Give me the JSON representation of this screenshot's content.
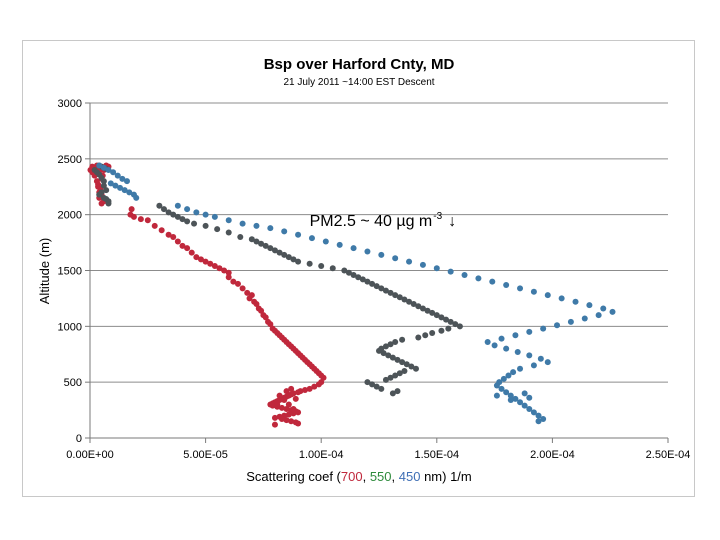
{
  "chart_data": {
    "type": "scatter",
    "title": "Bsp over Harford Cnty, MD",
    "subtitle": "21 July 2011  ~14:00 EST Descent",
    "xlabel_prefix": "Scattering coef (",
    "xlabel_parts": [
      {
        "text": "700",
        "color": "#c0283c"
      },
      {
        "text": ", ",
        "color": "#000000"
      },
      {
        "text": "550",
        "color": "#2e8b3c"
      },
      {
        "text": ", ",
        "color": "#000000"
      },
      {
        "text": "450",
        "color": "#3f6fb5"
      }
    ],
    "xlabel_suffix": " nm) 1/m",
    "ylabel": "Altitude (m)",
    "xlim": [
      0,
      0.00025
    ],
    "ylim": [
      0,
      3000
    ],
    "xticks": [
      0,
      5e-05,
      0.0001,
      0.00015,
      0.0002,
      0.00025
    ],
    "xtick_labels": [
      "0.00E+00",
      "5.00E-05",
      "1.00E-04",
      "1.50E-04",
      "2.00E-04",
      "2.50E-04"
    ],
    "yticks": [
      0,
      500,
      1000,
      1500,
      2000,
      2500,
      3000
    ],
    "ytick_labels": [
      "0",
      "500",
      "1000",
      "1500",
      "2000",
      "2500",
      "3000"
    ],
    "grid": "horizontal",
    "annotation": {
      "text": "PM2.5 ~ 40 µg m",
      "superscript": "-3",
      "arrow": "↓",
      "x": 9.5e-05,
      "y": 1900
    },
    "series": [
      {
        "name": "700 nm",
        "color": "#c0283c",
        "x": [
          2e-07,
          1e-06,
          2e-06,
          3e-06,
          3.5e-06,
          4e-06,
          2e-06,
          3e-06,
          1e-06,
          2.5e-06,
          4e-06,
          5e-06,
          3.5e-06,
          5e-06,
          4e-06,
          6e-06,
          5e-06,
          4.5e-06,
          5.5e-06,
          6e-06,
          7e-06,
          6.5e-06,
          8e-06,
          1.8e-05,
          1.75e-05,
          1.9e-05,
          2.2e-05,
          2.5e-05,
          2.8e-05,
          3.1e-05,
          3.4e-05,
          3.6e-05,
          3.8e-05,
          4e-05,
          4.2e-05,
          4.4e-05,
          4.6e-05,
          4.8e-05,
          5e-05,
          5.2e-05,
          5.4e-05,
          5.6e-05,
          5.8e-05,
          6e-05,
          6e-05,
          6.2e-05,
          6.4e-05,
          6.6e-05,
          6.8e-05,
          7e-05,
          6.9e-05,
          7.1e-05,
          7.2e-05,
          7.3e-05,
          7.4e-05,
          7.5e-05,
          7.6e-05,
          7.7e-05,
          7.8e-05,
          7.9e-05,
          8e-05,
          8.1e-05,
          8.2e-05,
          8.3e-05,
          8.4e-05,
          8.5e-05,
          8.6e-05,
          8.7e-05,
          8.8e-05,
          8.9e-05,
          9e-05,
          9.1e-05,
          9.2e-05,
          9.3e-05,
          9.4e-05,
          9.5e-05,
          9.6e-05,
          9.7e-05,
          9.8e-05,
          9.9e-05,
          0.0001,
          0.000101,
          0.0001,
          9.9e-05,
          9.7e-05,
          9.5e-05,
          9.3e-05,
          9.1e-05,
          9e-05,
          8.8e-05,
          8.7e-05,
          8.6e-05,
          8.5e-05,
          8.4e-05,
          8.3e-05,
          8.2e-05,
          8.1e-05,
          8e-05,
          7.9e-05,
          7.8e-05,
          7.9e-05,
          8.1e-05,
          8.3e-05,
          8.5e-05,
          8.7e-05,
          8.9e-05,
          9e-05,
          8.8e-05,
          8.6e-05,
          8.4e-05,
          8.2e-05,
          8e-05,
          8.3e-05,
          8.5e-05,
          8.7e-05,
          8.9e-05,
          9e-05,
          8e-05,
          8.2e-05,
          8.4e-05,
          8.6e-05,
          8.8e-05,
          8.5e-05,
          8.7e-05,
          8.1e-05,
          8.9e-05
        ],
        "y": [
          2400,
          2380,
          2350,
          2300,
          2250,
          2200,
          2420,
          2440,
          2430,
          2410,
          2390,
          2320,
          2270,
          2180,
          2150,
          2120,
          2100,
          2230,
          2350,
          2400,
          2440,
          2420,
          2430,
          2050,
          2000,
          1980,
          1960,
          1950,
          1900,
          1860,
          1820,
          1800,
          1760,
          1720,
          1700,
          1660,
          1620,
          1600,
          1580,
          1560,
          1540,
          1520,
          1500,
          1480,
          1440,
          1400,
          1380,
          1340,
          1300,
          1280,
          1250,
          1220,
          1200,
          1160,
          1140,
          1100,
          1080,
          1040,
          1020,
          980,
          960,
          940,
          920,
          900,
          880,
          860,
          840,
          820,
          800,
          780,
          760,
          740,
          720,
          700,
          680,
          660,
          640,
          620,
          600,
          580,
          560,
          540,
          500,
          480,
          460,
          440,
          430,
          420,
          410,
          400,
          390,
          380,
          370,
          360,
          350,
          340,
          330,
          320,
          310,
          300,
          290,
          280,
          270,
          260,
          250,
          240,
          230,
          220,
          210,
          200,
          190,
          180,
          170,
          160,
          150,
          140,
          130,
          120,
          380,
          340,
          300,
          260,
          420,
          440,
          300,
          350
        ],
        "_": null
      },
      {
        "name": "550 nm",
        "color": "#4d5458",
        "x": [
          2e-06,
          3e-06,
          4e-06,
          5e-06,
          6e-06,
          4e-06,
          5e-06,
          6e-06,
          7e-06,
          6e-06,
          7e-06,
          5e-06,
          4e-06,
          6e-06,
          7e-06,
          8e-06,
          8e-06,
          3e-05,
          3.2e-05,
          3.4e-05,
          3.6e-05,
          3.8e-05,
          4e-05,
          4.2e-05,
          4.5e-05,
          5e-05,
          5.5e-05,
          6e-05,
          6.5e-05,
          7e-05,
          7.2e-05,
          7.4e-05,
          7.6e-05,
          7.8e-05,
          8e-05,
          8.2e-05,
          8.4e-05,
          8.6e-05,
          8.8e-05,
          9e-05,
          9.5e-05,
          0.0001,
          0.000105,
          0.00011,
          0.000112,
          0.000114,
          0.000116,
          0.000118,
          0.00012,
          0.000122,
          0.000124,
          0.000126,
          0.000128,
          0.00013,
          0.000132,
          0.000134,
          0.000136,
          0.000138,
          0.00014,
          0.000142,
          0.000144,
          0.000146,
          0.000148,
          0.00015,
          0.000152,
          0.000154,
          0.000156,
          0.000158,
          0.00016,
          0.000155,
          0.000152,
          0.000148,
          0.000145,
          0.000142,
          0.000135,
          0.000132,
          0.00013,
          0.000128,
          0.000126,
          0.000125,
          0.000127,
          0.000129,
          0.000131,
          0.000133,
          0.000135,
          0.000137,
          0.000139,
          0.000141,
          0.000136,
          0.000134,
          0.000132,
          0.00013,
          0.000128,
          0.00012,
          0.000122,
          0.000124,
          0.000126,
          0.000133,
          0.000131
        ],
        "y": [
          2400,
          2380,
          2360,
          2330,
          2300,
          2440,
          2430,
          2420,
          2410,
          2260,
          2220,
          2200,
          2180,
          2150,
          2140,
          2120,
          2100,
          2080,
          2050,
          2020,
          2000,
          1980,
          1960,
          1940,
          1920,
          1900,
          1870,
          1840,
          1800,
          1780,
          1760,
          1740,
          1720,
          1700,
          1680,
          1660,
          1640,
          1620,
          1600,
          1580,
          1560,
          1540,
          1520,
          1500,
          1480,
          1460,
          1440,
          1420,
          1400,
          1380,
          1360,
          1340,
          1320,
          1300,
          1280,
          1260,
          1240,
          1220,
          1200,
          1180,
          1160,
          1140,
          1120,
          1100,
          1080,
          1060,
          1040,
          1020,
          1000,
          980,
          960,
          940,
          920,
          900,
          880,
          860,
          840,
          820,
          800,
          780,
          760,
          740,
          720,
          700,
          680,
          660,
          640,
          620,
          600,
          580,
          560,
          540,
          520,
          500,
          480,
          460,
          440,
          420,
          400
        ],
        "_": null
      },
      {
        "name": "450 nm",
        "color": "#3f7aa8",
        "x": [
          4e-06,
          6e-06,
          8e-06,
          1e-05,
          1.2e-05,
          1.4e-05,
          1.6e-05,
          9e-06,
          1.1e-05,
          1.3e-05,
          1.5e-05,
          1.7e-05,
          1.9e-05,
          2e-05,
          3.8e-05,
          4.2e-05,
          4.6e-05,
          5e-05,
          5.4e-05,
          6e-05,
          6.6e-05,
          7.2e-05,
          7.8e-05,
          8.4e-05,
          9e-05,
          9.6e-05,
          0.000102,
          0.000108,
          0.000114,
          0.00012,
          0.000126,
          0.000132,
          0.000138,
          0.000144,
          0.00015,
          0.000156,
          0.000162,
          0.000168,
          0.000174,
          0.00018,
          0.000186,
          0.000192,
          0.000198,
          0.000204,
          0.00021,
          0.000216,
          0.000222,
          0.000226,
          0.00022,
          0.000214,
          0.000208,
          0.000202,
          0.000196,
          0.00019,
          0.000184,
          0.000178,
          0.000172,
          0.000175,
          0.00018,
          0.000185,
          0.00019,
          0.000195,
          0.000198,
          0.000192,
          0.000186,
          0.000183,
          0.000181,
          0.000179,
          0.000177,
          0.000176,
          0.000178,
          0.00018,
          0.000182,
          0.000184,
          0.000186,
          0.000188,
          0.00019,
          0.000192,
          0.000194,
          0.000196,
          0.000194,
          0.000188,
          0.000176,
          0.00019,
          0.000182
        ],
        "y": [
          2440,
          2420,
          2400,
          2380,
          2350,
          2320,
          2300,
          2280,
          2260,
          2240,
          2220,
          2200,
          2180,
          2150,
          2080,
          2050,
          2020,
          2000,
          1980,
          1950,
          1920,
          1900,
          1880,
          1850,
          1820,
          1790,
          1760,
          1730,
          1700,
          1670,
          1640,
          1610,
          1580,
          1550,
          1520,
          1490,
          1460,
          1430,
          1400,
          1370,
          1340,
          1310,
          1280,
          1250,
          1220,
          1190,
          1160,
          1130,
          1100,
          1070,
          1040,
          1010,
          980,
          950,
          920,
          890,
          860,
          830,
          800,
          770,
          740,
          710,
          680,
          650,
          620,
          590,
          560,
          530,
          500,
          470,
          440,
          410,
          380,
          350,
          320,
          290,
          260,
          230,
          200,
          170,
          150,
          400,
          380,
          360,
          340
        ],
        "_": null
      }
    ]
  }
}
